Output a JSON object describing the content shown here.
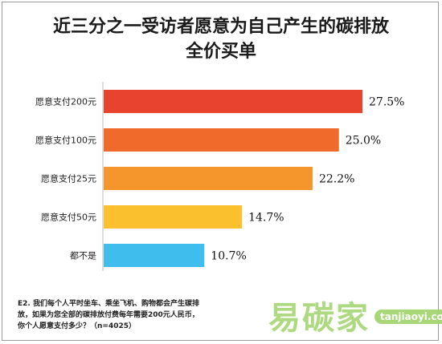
{
  "title_line1": "近三分之一受访者愿意为自己产生的碳排放",
  "title_line2": "全价买单",
  "chart_data": {
    "type": "bar",
    "orientation": "horizontal",
    "categories": [
      "愿意支付200元",
      "愿意支付100元",
      "愿意支付25元",
      "愿意支付50元",
      "都不是"
    ],
    "values": [
      27.5,
      25.0,
      22.2,
      14.7,
      10.7
    ],
    "value_labels": [
      "27.5%",
      "25.0%",
      "22.2%",
      "14.7%",
      "10.7%"
    ],
    "colors": [
      "#e8432e",
      "#ef6a2b",
      "#f5962d",
      "#fbc02d",
      "#3fbdec"
    ],
    "xlim": [
      0,
      30
    ],
    "grid": false
  },
  "footnote": {
    "line1": "E2. 我们每个人平时坐车、乘坐飞机、购物都会产生碳排",
    "line2": "放，如果为您全部的碳排放付费每年需要200元人民币，",
    "line3": "你个人愿意支付多少？（n=4025）"
  },
  "watermark": {
    "brand": "易碳家",
    "site": "tanjiaoyi.com"
  }
}
